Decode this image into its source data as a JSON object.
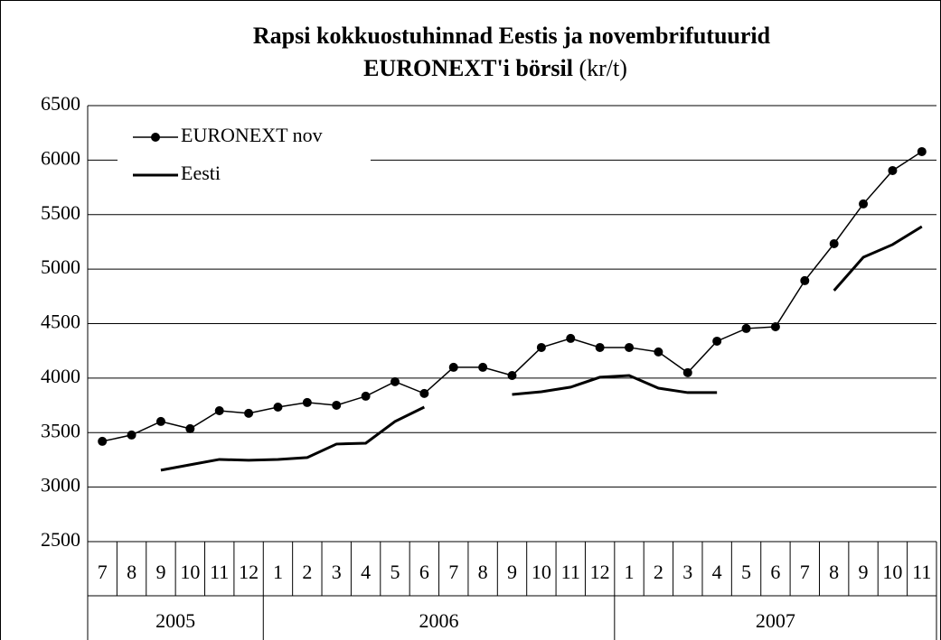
{
  "chart_data": {
    "type": "line",
    "title_lines": [
      "Rapsi kokkuostuhinnad Eestis ja novembrifutuurid",
      "EURONEXT'i börsil"
    ],
    "unit": "(kr/t)",
    "categories": [
      "7",
      "8",
      "9",
      "10",
      "11",
      "12",
      "1",
      "2",
      "3",
      "4",
      "5",
      "6",
      "7",
      "8",
      "9",
      "10",
      "11",
      "12",
      "1",
      "2",
      "3",
      "4",
      "5",
      "6",
      "7",
      "8",
      "9",
      "10",
      "11"
    ],
    "year_groups": [
      {
        "label": "2005",
        "months": 6
      },
      {
        "label": "2006",
        "months": 12
      },
      {
        "label": "2007",
        "months": 11
      }
    ],
    "series": [
      {
        "name": "EURONEXT nov",
        "color": "#000000",
        "marker": true,
        "values": [
          3420,
          3478,
          3602,
          3536,
          3701,
          3677,
          3734,
          3776,
          3751,
          3834,
          3967,
          3859,
          4099,
          4099,
          4024,
          4281,
          4364,
          4281,
          4281,
          4240,
          4050,
          4339,
          4455,
          4471,
          4894,
          5233,
          5598,
          5904,
          6078
        ]
      },
      {
        "name": "Eesti",
        "color": "#000000",
        "marker": false,
        "values": [
          null,
          null,
          3155,
          3205,
          3254,
          3246,
          3254,
          3271,
          3395,
          3403,
          3602,
          3734,
          null,
          null,
          3850,
          3875,
          3917,
          4008,
          4024,
          3908,
          3867,
          3867,
          null,
          null,
          null,
          4803,
          5109,
          5225,
          5390
        ]
      }
    ],
    "ylim": [
      2500,
      6500
    ],
    "yticks": [
      2500,
      3000,
      3500,
      4000,
      4500,
      5000,
      5500,
      6000,
      6500
    ],
    "grid": true,
    "legend": "upper left"
  }
}
